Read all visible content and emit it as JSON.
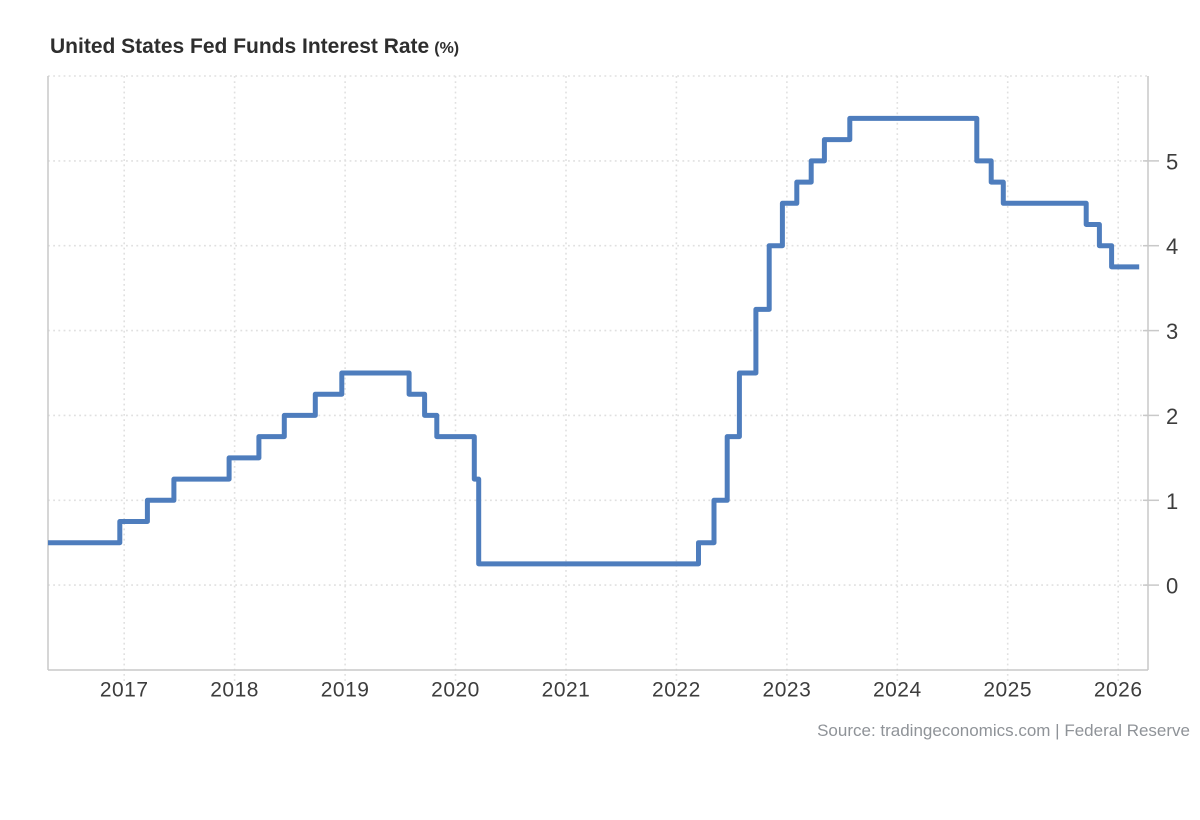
{
  "header": {
    "title": "United States Fed Funds Interest Rate",
    "unit": "(%)"
  },
  "footer": {
    "source": "Source: tradingeconomics.com | Federal Reserve"
  },
  "colors": {
    "line": "#4e7dbd",
    "grid": "#e0e0e0",
    "axis": "#c9c9c9",
    "tick_label": "#3d3d3d",
    "title": "#2e2e2e",
    "source": "#8f9398",
    "background": "#ffffff"
  },
  "chart_data": {
    "type": "line",
    "subtype": "step",
    "title": "United States Fed Funds Interest Rate (%)",
    "xlabel": "",
    "ylabel": "%",
    "legend": "none",
    "grid": true,
    "y_axis_side": "right",
    "x_range": [
      2016.31,
      2026.27
    ],
    "y_range": [
      -1,
      6
    ],
    "x_ticks": [
      2017,
      2018,
      2019,
      2020,
      2021,
      2022,
      2023,
      2024,
      2025,
      2026
    ],
    "y_ticks": [
      0,
      1,
      2,
      3,
      4,
      5
    ],
    "y_gridlines": [
      0,
      1,
      2,
      3,
      4,
      5,
      6
    ],
    "series": [
      {
        "name": "Fed Funds Rate",
        "color": "#4e7dbd",
        "points": [
          [
            2016.31,
            0.5
          ],
          [
            2016.96,
            0.75
          ],
          [
            2017.21,
            1.0
          ],
          [
            2017.45,
            1.25
          ],
          [
            2017.95,
            1.5
          ],
          [
            2018.22,
            1.75
          ],
          [
            2018.45,
            2.0
          ],
          [
            2018.73,
            2.25
          ],
          [
            2018.97,
            2.5
          ],
          [
            2019.58,
            2.25
          ],
          [
            2019.72,
            2.0
          ],
          [
            2019.83,
            1.75
          ],
          [
            2020.17,
            1.25
          ],
          [
            2020.21,
            0.25
          ],
          [
            2022.2,
            0.5
          ],
          [
            2022.34,
            1.0
          ],
          [
            2022.46,
            1.75
          ],
          [
            2022.57,
            2.5
          ],
          [
            2022.72,
            3.25
          ],
          [
            2022.84,
            4.0
          ],
          [
            2022.96,
            4.5
          ],
          [
            2023.09,
            4.75
          ],
          [
            2023.22,
            5.0
          ],
          [
            2023.34,
            5.25
          ],
          [
            2023.57,
            5.5
          ],
          [
            2024.72,
            5.0
          ],
          [
            2024.85,
            4.75
          ],
          [
            2024.96,
            4.5
          ],
          [
            2025.71,
            4.25
          ],
          [
            2025.83,
            4.0
          ],
          [
            2025.94,
            3.75
          ],
          [
            2026.19,
            3.75
          ]
        ]
      }
    ]
  }
}
